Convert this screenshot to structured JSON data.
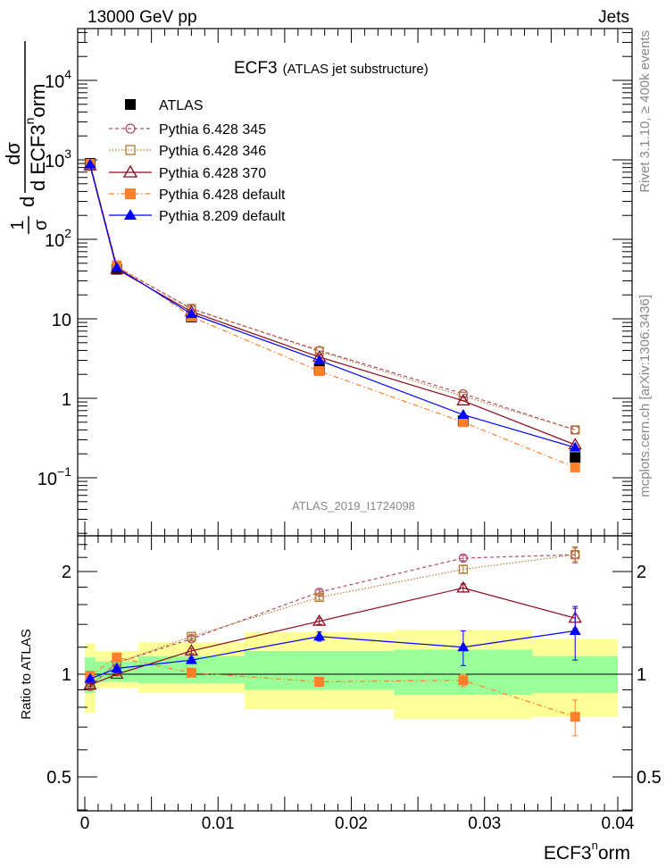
{
  "header": {
    "left": "13000 GeV pp",
    "right": "Jets"
  },
  "side_labels": {
    "top": "Rivet 3.1.10, ≥ 400k events",
    "bottom": "mcplots.cern.ch [arXiv:1306.3436]"
  },
  "chart_data": [
    {
      "type": "line",
      "title": "ECF3",
      "subtitle": "(ATLAS jet substructure)",
      "watermark": "ATLAS_2019_I1724098",
      "ylabel": "1/σ dσ/d ECF3^norm",
      "ylabel_parts": {
        "num_d": "d",
        "num_sigma": "dσ",
        "one": "1",
        "den_sigma": "σ",
        "den_d": "d",
        "den": "d ECF3",
        "sup": "n",
        "tail": "orm"
      },
      "yscale": "log",
      "ylim": [
        0.023,
        44000
      ],
      "yticks": [
        {
          "v": 10000,
          "base": "10",
          "exp": "4"
        },
        {
          "v": 1000,
          "base": "10",
          "exp": "3"
        },
        {
          "v": 100,
          "base": "10",
          "exp": "2"
        },
        {
          "v": 10,
          "base": "10",
          "exp": ""
        },
        {
          "v": 1,
          "base": "1",
          "exp": ""
        },
        {
          "v": 0.1,
          "base": "10",
          "exp": "−1"
        }
      ],
      "x": [
        0.0004,
        0.0024,
        0.008,
        0.0176,
        0.0284,
        0.0368
      ],
      "series": [
        {
          "name": "ATLAS",
          "color": "#000000",
          "marker": "square-filled",
          "dash": "none",
          "line": false,
          "values": [
            900,
            42,
            10.5,
            2.3,
            0.52,
            0.18
          ]
        },
        {
          "name": "Pythia 6.428 345",
          "color": "#b24a6a",
          "marker": "circle-open",
          "dash": "4,3",
          "line": true,
          "values": [
            830,
            45,
            13.3,
            4.0,
            1.14,
            0.4
          ]
        },
        {
          "name": "Pythia 6.428 346",
          "color": "#b07a30",
          "marker": "square-open",
          "dash": "1.5,2",
          "line": true,
          "values": [
            840,
            45,
            13.5,
            3.9,
            1.06,
            0.4
          ]
        },
        {
          "name": "Pythia 6.428 370",
          "color": "#8b0a1e",
          "marker": "triangle-open",
          "dash": "none",
          "line": true,
          "values": [
            840,
            42,
            12.3,
            3.3,
            0.93,
            0.26
          ]
        },
        {
          "name": "Pythia 6.428 default",
          "color": "#ff7f2a",
          "marker": "square-filled",
          "dash": "6,3,1.5,3",
          "line": true,
          "values": [
            890,
            47,
            10.6,
            2.2,
            0.5,
            0.135
          ]
        },
        {
          "name": "Pythia 8.209 default",
          "color": "#0000ff",
          "marker": "triangle-filled",
          "dash": "none",
          "line": true,
          "values": [
            875,
            44,
            11.5,
            3.0,
            0.62,
            0.24
          ]
        }
      ]
    },
    {
      "type": "line",
      "ylabel": "Ratio to ATLAS",
      "xlabel_base": "ECF3",
      "xlabel_sup": "n",
      "xlabel_tail": "orm",
      "yscale": "log",
      "ylim": [
        0.4,
        2.5
      ],
      "yticks": [
        {
          "v": 2,
          "label": "2"
        },
        {
          "v": 1,
          "label": "1"
        },
        {
          "v": 0.5,
          "label": "0.5"
        }
      ],
      "xlim": [
        0,
        0.04
      ],
      "xticks": [
        {
          "v": 0,
          "label": "0"
        },
        {
          "v": 0.01,
          "label": "0.01"
        },
        {
          "v": 0.02,
          "label": "0.02"
        },
        {
          "v": 0.03,
          "label": "0.03"
        },
        {
          "v": 0.04,
          "label": "0.04"
        }
      ],
      "bin_edges": [
        0,
        0.0008,
        0.004,
        0.012,
        0.0232,
        0.0336,
        0.04
      ],
      "band_outer": {
        "color": "#ffff99",
        "low": [
          0.77,
          0.91,
          0.88,
          0.79,
          0.74,
          0.75
        ],
        "high": [
          1.23,
          1.17,
          1.24,
          1.33,
          1.35,
          1.27
        ]
      },
      "band_inner": {
        "color": "#99ff99",
        "low": [
          0.88,
          0.95,
          0.94,
          0.9,
          0.87,
          0.88
        ],
        "high": [
          1.12,
          1.09,
          1.13,
          1.17,
          1.18,
          1.13
        ]
      },
      "x": [
        0.0004,
        0.0024,
        0.008,
        0.0176,
        0.0284,
        0.0368
      ],
      "series": [
        {
          "name": "Pythia 6.428 345",
          "values": [
            0.92,
            1.08,
            1.27,
            1.74,
            2.19,
            2.24
          ],
          "err": [
            0.01,
            0.01,
            0.02,
            0.03,
            0.04,
            0.12
          ]
        },
        {
          "name": "Pythia 6.428 346",
          "values": [
            0.93,
            1.08,
            1.29,
            1.68,
            2.03,
            2.24
          ],
          "err": [
            0.01,
            0.01,
            0.02,
            0.03,
            0.05,
            0.1
          ]
        },
        {
          "name": "Pythia 6.428 370",
          "values": [
            0.93,
            1.0,
            1.17,
            1.43,
            1.79,
            1.46
          ],
          "err": [
            0.01,
            0.01,
            0.02,
            0.03,
            0.05,
            0.1
          ]
        },
        {
          "name": "Pythia 6.428 default",
          "values": [
            0.99,
            1.12,
            1.01,
            0.95,
            0.96,
            0.75
          ],
          "err": [
            0.01,
            0.01,
            0.01,
            0.02,
            0.04,
            0.09
          ]
        },
        {
          "name": "Pythia 8.209 default",
          "values": [
            0.97,
            1.04,
            1.1,
            1.29,
            1.2,
            1.34
          ],
          "err": [
            0.01,
            0.01,
            0.02,
            0.04,
            0.14,
            0.24
          ]
        }
      ]
    }
  ]
}
